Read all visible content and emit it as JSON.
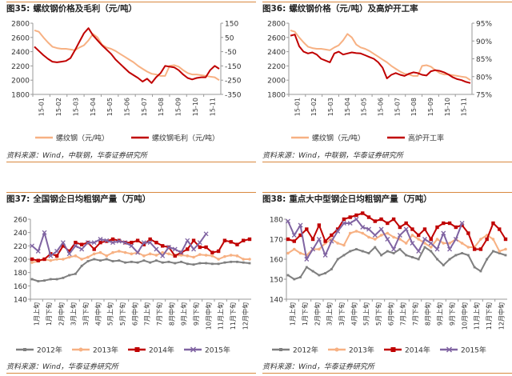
{
  "colors": {
    "orange": "#f7b183",
    "darkred": "#c00000",
    "gray": "#7f7f7f",
    "purple": "#8064a2",
    "rule": "#d9893f"
  },
  "chart_data": [
    {
      "id": "c35",
      "type": "line",
      "title_num": "图35:",
      "title": "螺纹钢价格及毛利（元/吨）",
      "source": "资料来源：Wind，中联钢，华泰证券研究所",
      "x_ticks": [
        "15-01",
        "15-02",
        "15-03",
        "15-04",
        "15-05",
        "15-06",
        "15-07",
        "15-08",
        "15-09",
        "15-10",
        "15-11"
      ],
      "y_left": {
        "min": 1800,
        "max": 2800,
        "ticks": [
          1800,
          2000,
          2200,
          2400,
          2600,
          2800
        ]
      },
      "y_right": {
        "min": -350,
        "max": 150,
        "ticks": [
          -350,
          -250,
          -150,
          -50,
          50,
          150
        ]
      },
      "series": [
        {
          "name": "螺纹钢（元/吨）",
          "color": "orange",
          "axis": "left",
          "values": [
            2700,
            2680,
            2600,
            2530,
            2470,
            2450,
            2440,
            2440,
            2430,
            2420,
            2460,
            2490,
            2560,
            2650,
            2600,
            2500,
            2460,
            2440,
            2410,
            2370,
            2330,
            2290,
            2250,
            2200,
            2160,
            2120,
            2090,
            2080,
            2060,
            2060,
            2200,
            2210,
            2190,
            2140,
            2100,
            2080,
            2080,
            2070,
            2060,
            2050,
            2040,
            2000
          ]
        },
        {
          "name": "螺纹钢毛利（元/吨）",
          "color": "darkred",
          "axis": "right",
          "values": [
            -15,
            -45,
            -75,
            -100,
            -120,
            -125,
            -120,
            -115,
            -95,
            -40,
            20,
            80,
            115,
            65,
            30,
            -5,
            -35,
            -65,
            -105,
            -135,
            -165,
            -195,
            -215,
            -235,
            -260,
            -240,
            -270,
            -230,
            -200,
            -150,
            -155,
            -160,
            -180,
            -210,
            -235,
            -245,
            -235,
            -230,
            -230,
            -180,
            -150,
            -170
          ]
        }
      ]
    },
    {
      "id": "c36",
      "type": "line",
      "title_num": "图36:",
      "title": "螺纹钢价格（元/吨）及高炉开工率",
      "source": "资料来源：Wind，中联钢，华泰证券研究所",
      "x_ticks": [
        "15-01",
        "15-02",
        "15-03",
        "15-04",
        "15-05",
        "15-06",
        "15-07",
        "15-08",
        "15-09",
        "15-10",
        "15-11"
      ],
      "y_left": {
        "min": 1800,
        "max": 2800,
        "ticks": [
          1800,
          2000,
          2200,
          2400,
          2600,
          2800
        ]
      },
      "y_right": {
        "min": 75,
        "max": 95,
        "ticks": [
          75,
          80,
          85,
          90,
          95
        ],
        "suffix": "%"
      },
      "series": [
        {
          "name": "螺纹钢（元/吨）",
          "color": "orange",
          "axis": "left",
          "values": [
            2700,
            2680,
            2600,
            2530,
            2470,
            2450,
            2440,
            2440,
            2430,
            2420,
            2460,
            2490,
            2560,
            2650,
            2600,
            2500,
            2460,
            2440,
            2410,
            2370,
            2330,
            2290,
            2250,
            2200,
            2160,
            2120,
            2090,
            2080,
            2060,
            2060,
            2200,
            2210,
            2190,
            2140,
            2100,
            2080,
            2080,
            2070,
            2060,
            2050,
            2040,
            2000
          ]
        },
        {
          "name": "高炉开工率",
          "color": "darkred",
          "axis": "right",
          "values": [
            91.5,
            91.8,
            88.5,
            87.0,
            86.5,
            86.8,
            86.2,
            85.0,
            84.5,
            84.0,
            86.5,
            87.0,
            86.2,
            86.5,
            86.8,
            86.6,
            86.5,
            86.0,
            85.5,
            85.0,
            84.0,
            82.5,
            79.5,
            80.5,
            81.0,
            80.5,
            80.2,
            80.8,
            81.2,
            81.0,
            80.5,
            80.3,
            81.5,
            81.8,
            81.6,
            81.2,
            80.6,
            79.8,
            79.3,
            79.0,
            78.5,
            78.2
          ]
        }
      ]
    },
    {
      "id": "c37",
      "type": "line",
      "title_num": "图37:",
      "title": "全国钢企日均粗钢产量（万吨）",
      "source": "资料来源：Wind，华泰证券研究所",
      "x_ticks": [
        "1月上旬",
        "1月下旬",
        "2月中旬",
        "3月上旬",
        "3月下旬",
        "4月中旬",
        "5月上旬",
        "5月下旬",
        "6月中旬",
        "7月上旬",
        "7月下旬",
        "8月中旬",
        "9月上旬",
        "9月下旬",
        "10月中旬",
        "11月上旬",
        "11月下旬",
        "12月中旬"
      ],
      "y_left": {
        "min": 140,
        "max": 260,
        "ticks": [
          140,
          160,
          180,
          200,
          220,
          240,
          260
        ]
      },
      "series": [
        {
          "name": "2012年",
          "color": "gray",
          "values": [
            170,
            167,
            168,
            170,
            170,
            172,
            176,
            178,
            190,
            197,
            200,
            198,
            200,
            197,
            198,
            195,
            196,
            195,
            198,
            195,
            198,
            195,
            196,
            194,
            196,
            193,
            192,
            194,
            194,
            193,
            193,
            195,
            196,
            196,
            195,
            194
          ]
        },
        {
          "name": "2013年",
          "color": "orange",
          "values": [
            195,
            197,
            200,
            198,
            200,
            200,
            203,
            205,
            200,
            203,
            208,
            210,
            205,
            210,
            212,
            210,
            208,
            210,
            205,
            208,
            206,
            210,
            208,
            205,
            206,
            205,
            203,
            207,
            206,
            205,
            200,
            204,
            206,
            205,
            200,
            200
          ]
        },
        {
          "name": "2014年",
          "color": "darkred",
          "values": [
            200,
            198,
            200,
            208,
            205,
            220,
            212,
            225,
            222,
            225,
            215,
            225,
            227,
            230,
            228,
            225,
            225,
            228,
            222,
            230,
            225,
            220,
            218,
            205,
            210,
            215,
            228,
            218,
            218,
            210,
            212,
            228,
            226,
            222,
            228,
            230
          ]
        },
        {
          "name": "2015年",
          "color": "purple",
          "values": [
            220,
            212,
            240,
            205,
            212,
            225,
            208,
            220,
            215,
            225,
            225,
            230,
            228,
            225,
            227,
            225,
            220,
            210,
            225,
            225,
            215,
            205,
            218,
            215,
            210,
            228,
            215,
            225,
            238
          ]
        }
      ]
    },
    {
      "id": "c38",
      "type": "line",
      "title_num": "图38:",
      "title": "重点大中型钢企日均粗钢产量（万吨）",
      "source": "资料来源：Wind，华泰证券研究所",
      "x_ticks": [
        "1月上旬",
        "1月下旬",
        "2月中旬",
        "3月上旬",
        "3月下旬",
        "4月中旬",
        "5月上旬",
        "5月下旬",
        "6月中旬",
        "7月上旬",
        "7月下旬",
        "8月中旬",
        "9月上旬",
        "9月下旬",
        "10月中旬",
        "11月上旬",
        "11月下旬",
        "12月中旬"
      ],
      "y_left": {
        "min": 140,
        "max": 180,
        "ticks": [
          140,
          150,
          160,
          170,
          180
        ]
      },
      "series": [
        {
          "name": "2012年",
          "color": "gray",
          "values": [
            152,
            150,
            151,
            156,
            154,
            152,
            153,
            155,
            160,
            162,
            164,
            165,
            164,
            163,
            166,
            162,
            164,
            163,
            165,
            162,
            161,
            160,
            166,
            164,
            160,
            157,
            160,
            162,
            163,
            162,
            156,
            154,
            160,
            164,
            163,
            162
          ]
        },
        {
          "name": "2013年",
          "color": "orange",
          "values": [
            163,
            165,
            163,
            162,
            165,
            165,
            168,
            170,
            168,
            167,
            173,
            174,
            173,
            171,
            170,
            172,
            173,
            171,
            170,
            168,
            172,
            170,
            168,
            166,
            170,
            168,
            168,
            170,
            168,
            166,
            166,
            170,
            172,
            170,
            164,
            165
          ]
        },
        {
          "name": "2014年",
          "color": "darkred",
          "values": [
            170,
            169,
            172,
            175,
            170,
            177,
            169,
            172,
            175,
            180,
            181,
            182,
            183,
            181,
            179,
            180,
            178,
            180,
            176,
            178,
            175,
            172,
            175,
            170,
            176,
            178,
            178,
            176,
            177,
            173,
            165,
            165,
            170,
            178,
            175,
            170
          ]
        },
        {
          "name": "2015年",
          "color": "purple",
          "values": [
            179,
            172,
            177,
            160,
            165,
            170,
            162,
            169,
            174,
            178,
            178,
            180,
            176,
            175,
            172,
            175,
            170,
            165,
            172,
            175,
            168,
            164,
            170,
            168,
            165,
            173,
            165,
            170,
            178
          ]
        }
      ]
    }
  ]
}
